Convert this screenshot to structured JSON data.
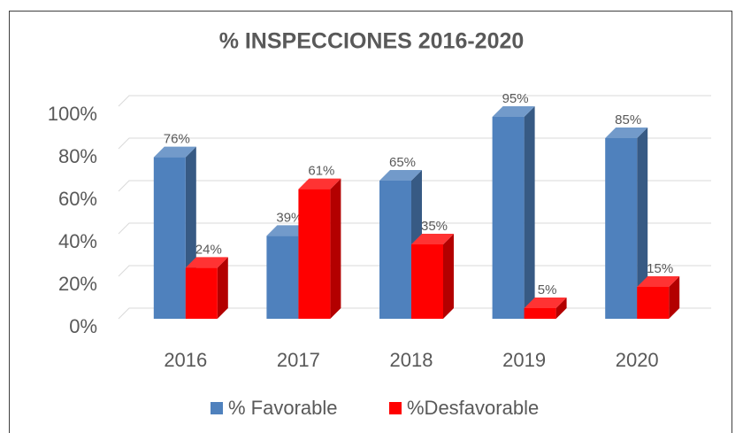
{
  "chart_data": {
    "type": "bar3d",
    "title": "% INSPECCIONES 2016-2020",
    "categories": [
      "2016",
      "2017",
      "2018",
      "2019",
      "2020"
    ],
    "series": [
      {
        "name": "% Favorable",
        "color": "#4f81bd",
        "values": [
          76,
          39,
          65,
          95,
          85
        ],
        "value_labels": [
          "76%",
          "39%",
          "65%",
          "95%",
          "85%"
        ]
      },
      {
        "name": "%Desfavorable",
        "color": "#ff0000",
        "values": [
          24,
          61,
          35,
          5,
          15
        ],
        "value_labels": [
          "24%",
          "61%",
          "35%",
          "5%",
          "15%"
        ]
      }
    ],
    "ylim": [
      0,
      100
    ],
    "yticks": [
      {
        "value": 0,
        "label": "0%"
      },
      {
        "value": 20,
        "label": "20%"
      },
      {
        "value": 40,
        "label": "40%"
      },
      {
        "value": 60,
        "label": "60%"
      },
      {
        "value": 80,
        "label": "80%"
      },
      {
        "value": 100,
        "label": "100%"
      }
    ],
    "grid": true,
    "legend": "bottom"
  }
}
